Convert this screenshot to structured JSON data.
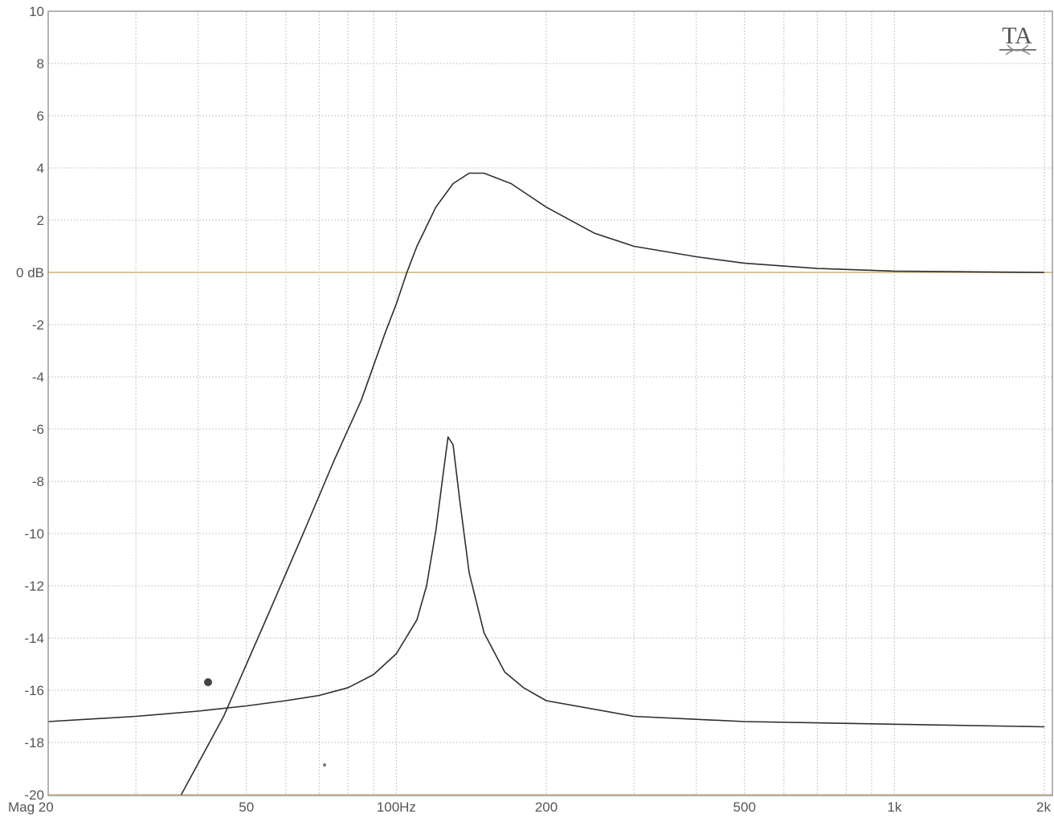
{
  "logo": "TA",
  "y_ticks": [
    {
      "value": 10,
      "label": "10"
    },
    {
      "value": 8,
      "label": "8"
    },
    {
      "value": 6,
      "label": "6"
    },
    {
      "value": 4,
      "label": "4"
    },
    {
      "value": 2,
      "label": "2"
    },
    {
      "value": 0,
      "label": "0 dB"
    },
    {
      "value": -2,
      "label": "-2"
    },
    {
      "value": -4,
      "label": "-4"
    },
    {
      "value": -6,
      "label": "-6"
    },
    {
      "value": -8,
      "label": "-8"
    },
    {
      "value": -10,
      "label": "-10"
    },
    {
      "value": -12,
      "label": "-12"
    },
    {
      "value": -14,
      "label": "-14"
    },
    {
      "value": -16,
      "label": "-16"
    },
    {
      "value": -18,
      "label": "-18"
    },
    {
      "value": -20,
      "label": "-20"
    }
  ],
  "x_ticks": [
    {
      "value": 20,
      "label": "Mag 20"
    },
    {
      "value": 50,
      "label": "50"
    },
    {
      "value": 100,
      "label": "100Hz"
    },
    {
      "value": 200,
      "label": "200"
    },
    {
      "value": 500,
      "label": "500"
    },
    {
      "value": 1000,
      "label": "1k"
    },
    {
      "value": 2000,
      "label": "2k"
    }
  ],
  "chart_data": {
    "type": "line",
    "x_scale": "log",
    "xlim": [
      20,
      2000
    ],
    "ylim": [
      -20,
      10
    ],
    "grid": true,
    "x_gridlines": [
      20,
      30,
      40,
      50,
      60,
      70,
      80,
      90,
      100,
      200,
      300,
      400,
      500,
      600,
      700,
      800,
      900,
      1000,
      2000
    ],
    "series": [
      {
        "points": [
          [
            37,
            -20
          ],
          [
            45,
            -17
          ],
          [
            55,
            -13.2
          ],
          [
            65,
            -10
          ],
          [
            75,
            -7.2
          ],
          [
            85,
            -4.9
          ],
          [
            95,
            -2.3
          ],
          [
            100,
            -1.2
          ],
          [
            105,
            0
          ],
          [
            110,
            1.0
          ],
          [
            120,
            2.5
          ],
          [
            130,
            3.4
          ],
          [
            140,
            3.8
          ],
          [
            150,
            3.8
          ],
          [
            170,
            3.4
          ],
          [
            200,
            2.5
          ],
          [
            250,
            1.5
          ],
          [
            300,
            1.0
          ],
          [
            400,
            0.6
          ],
          [
            500,
            0.35
          ],
          [
            700,
            0.15
          ],
          [
            1000,
            0.05
          ],
          [
            1500,
            0.02
          ],
          [
            2000,
            0
          ]
        ]
      },
      {
        "points": [
          [
            20,
            -17.2
          ],
          [
            30,
            -17.0
          ],
          [
            40,
            -16.8
          ],
          [
            50,
            -16.6
          ],
          [
            60,
            -16.4
          ],
          [
            70,
            -16.2
          ],
          [
            80,
            -15.9
          ],
          [
            90,
            -15.4
          ],
          [
            100,
            -14.6
          ],
          [
            110,
            -13.3
          ],
          [
            115,
            -12.0
          ],
          [
            120,
            -9.9
          ],
          [
            124,
            -7.8
          ],
          [
            127,
            -6.3
          ],
          [
            130,
            -6.6
          ],
          [
            134,
            -8.7
          ],
          [
            140,
            -11.5
          ],
          [
            150,
            -13.8
          ],
          [
            165,
            -15.3
          ],
          [
            180,
            -15.9
          ],
          [
            200,
            -16.4
          ],
          [
            300,
            -17.0
          ],
          [
            500,
            -17.2
          ],
          [
            1000,
            -17.3
          ],
          [
            2000,
            -17.4
          ]
        ]
      }
    ]
  }
}
